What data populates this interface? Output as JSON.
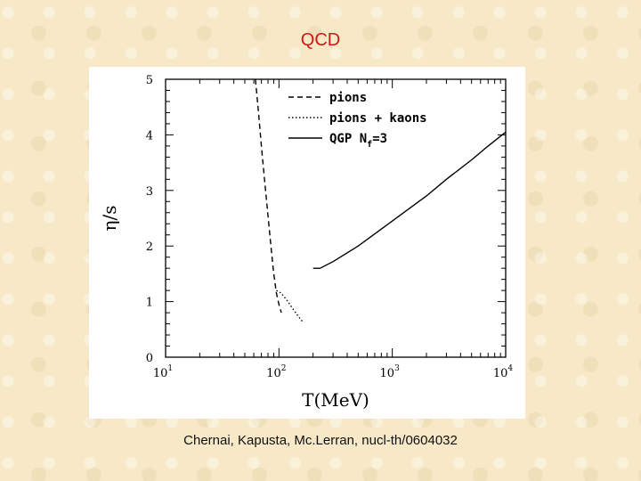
{
  "slide": {
    "title": "QCD",
    "caption": "Chernai, Kapusta, Mc.Lerran, nucl-th/0604032"
  },
  "colors": {
    "title": "#d01818",
    "background": "#f7e9c8",
    "plot_line": "#000000"
  },
  "chart_data": {
    "type": "line",
    "xlabel": "T(MeV)",
    "ylabel": "η/s",
    "xscale": "log",
    "xlim": [
      10,
      10000
    ],
    "ylim": [
      0,
      5
    ],
    "x_ticks": [
      {
        "base": "10",
        "exp": "1",
        "value": 10
      },
      {
        "base": "10",
        "exp": "2",
        "value": 100
      },
      {
        "base": "10",
        "exp": "3",
        "value": 1000
      },
      {
        "base": "10",
        "exp": "4",
        "value": 10000
      }
    ],
    "y_ticks": [
      "0",
      "1",
      "2",
      "3",
      "4",
      "5"
    ],
    "legend_position": "top-right",
    "grid": false,
    "series": [
      {
        "name": "pions",
        "legend_label": "pions",
        "style": "dashed",
        "points": [
          [
            62,
            5.0
          ],
          [
            66,
            4.4
          ],
          [
            70,
            3.8
          ],
          [
            75,
            3.15
          ],
          [
            80,
            2.55
          ],
          [
            85,
            2.0
          ],
          [
            90,
            1.5
          ],
          [
            95,
            1.15
          ],
          [
            100,
            0.95
          ],
          [
            105,
            0.8
          ]
        ]
      },
      {
        "name": "pions + kaons",
        "legend_label": "pions + kaons",
        "style": "dotted",
        "points": [
          [
            95,
            1.2
          ],
          [
            105,
            1.15
          ],
          [
            120,
            1.0
          ],
          [
            135,
            0.85
          ],
          [
            150,
            0.72
          ],
          [
            165,
            0.62
          ]
        ]
      },
      {
        "name": "QGP Nf=3",
        "legend_label": "QGP N",
        "legend_sub": "f",
        "legend_suffix": "=3",
        "style": "solid",
        "points": [
          [
            200,
            1.6
          ],
          [
            230,
            1.6
          ],
          [
            300,
            1.72
          ],
          [
            500,
            2.0
          ],
          [
            1000,
            2.45
          ],
          [
            2000,
            2.9
          ],
          [
            3000,
            3.2
          ],
          [
            5000,
            3.55
          ],
          [
            7000,
            3.8
          ],
          [
            10000,
            4.05
          ]
        ]
      }
    ]
  }
}
